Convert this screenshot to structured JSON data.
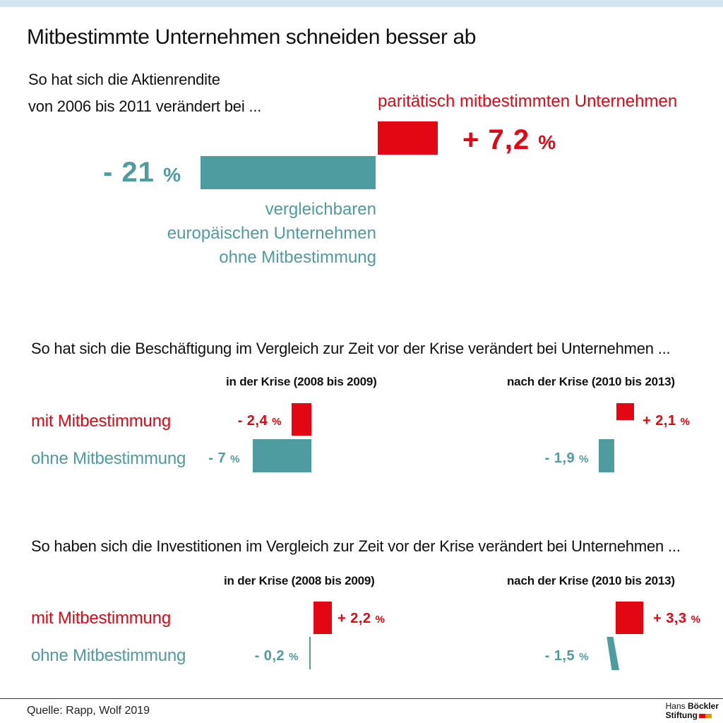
{
  "title": "Mitbestimmte Unternehmen schneiden besser ab",
  "colors": {
    "red": "#e30613",
    "teal": "#4e9ba0"
  },
  "chart_data": [
    {
      "type": "bar",
      "question_line1": "So hat sich die Aktienrendite",
      "question_line2": "von 2006 bis 2011 verändert bei ...",
      "categories": [
        "paritätisch mitbestimmten Unternehmen",
        "vergleichbaren europäischen Unternehmen ohne Mitbestimmung"
      ],
      "values": [
        7.2,
        -21
      ],
      "label_red": "paritätisch mitbestimmten Unternehmen",
      "label_teal_1": "vergleichbaren",
      "label_teal_2": "europäischen Unternehmen",
      "label_teal_3": "ohne Mitbestimmung",
      "value_labels": [
        "+ 7,2",
        "- 21"
      ],
      "unit": "%"
    },
    {
      "type": "bar",
      "question": "So hat sich die Beschäftigung im Vergleich zur Zeit vor der Krise verändert bei Unternehmen ...",
      "periods": [
        "in der Krise (2008 bis 2009)",
        "nach der  Krise (2010 bis 2013)"
      ],
      "rows": [
        "mit Mitbestimmung",
        "ohne Mitbestimmung"
      ],
      "series": [
        {
          "name": "mit Mitbestimmung",
          "values": [
            -2.4,
            2.1
          ],
          "labels": [
            "- 2,4",
            "+ 2,1"
          ]
        },
        {
          "name": "ohne Mitbestimmung",
          "values": [
            -7,
            -1.9
          ],
          "labels": [
            "- 7",
            "- 1,9"
          ]
        }
      ],
      "unit": "%"
    },
    {
      "type": "bar",
      "question": "So haben sich die Investitionen im Vergleich zur Zeit vor der Krise verändert bei Unternehmen ...",
      "periods": [
        "in der Krise (2008 bis 2009)",
        "nach der  Krise (2010 bis 2013)"
      ],
      "rows": [
        "mit Mitbestimmung",
        "ohne Mitbestimmung"
      ],
      "series": [
        {
          "name": "mit Mitbestimmung",
          "values": [
            2.2,
            3.3
          ],
          "labels": [
            "+ 2,2",
            "+ 3,3"
          ]
        },
        {
          "name": "ohne Mitbestimmung",
          "values": [
            -0.2,
            -1.5
          ],
          "labels": [
            "- 0,2",
            "- 1,5"
          ]
        }
      ],
      "unit": "%"
    }
  ],
  "source": "Quelle: Rapp, Wolf 2019",
  "logo": {
    "line1_a": "Hans",
    "line1_b": "Böckler",
    "line2": "Stiftung"
  }
}
